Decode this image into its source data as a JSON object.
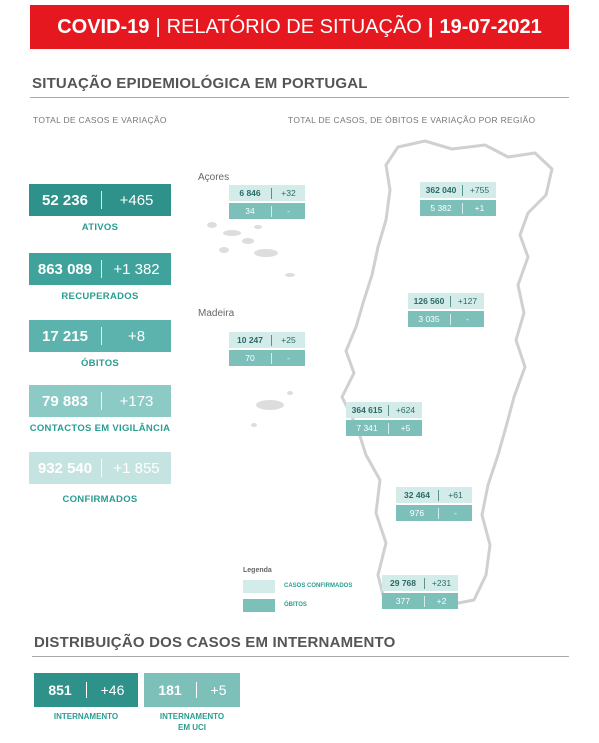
{
  "banner": {
    "left": "COVID-19",
    "middle": "RELATÓRIO DE SITUAÇÃO",
    "date": "19-07-2021",
    "sep": "|",
    "color": "#e4181e"
  },
  "section1": {
    "title": "SITUAÇÃO EPIDEMIOLÓGICA EM PORTUGAL",
    "sub_left": "TOTAL DE CASOS E VARIAÇÃO",
    "sub_right": "TOTAL DE CASOS, DE ÓBITOS E VARIAÇÃO POR REGIÃO"
  },
  "stats": [
    {
      "value": "52 236",
      "delta": "+465",
      "label": "ATIVOS",
      "color": "#2e918a"
    },
    {
      "value": "863 089",
      "delta": "+1 382",
      "label": "RECUPERADOS",
      "color": "#3fa39c"
    },
    {
      "value": "17 215",
      "delta": "+8",
      "label": "ÓBITOS",
      "color": "#5cb3ad"
    },
    {
      "value": "79 883",
      "delta": "+173",
      "label": "CONTACTOS EM VIGILÂNCIA",
      "color": "#8ccac5"
    },
    {
      "value": "932 540",
      "delta": "+1 855",
      "label": "CONFIRMADOS",
      "color": "#c5e4e1"
    }
  ],
  "regions": {
    "acores_name": "Açores",
    "madeira_name": "Madeira",
    "acores": {
      "cases": "6 846",
      "cases_delta": "+32",
      "deaths": "34",
      "deaths_delta": "-"
    },
    "madeira": {
      "cases": "10 247",
      "cases_delta": "+25",
      "deaths": "70",
      "deaths_delta": "-"
    },
    "norte": {
      "cases": "362 040",
      "cases_delta": "+755",
      "deaths": "5 382",
      "deaths_delta": "+1"
    },
    "centro": {
      "cases": "126 560",
      "cases_delta": "+127",
      "deaths": "3 035",
      "deaths_delta": "-"
    },
    "lisboa": {
      "cases": "364 615",
      "cases_delta": "+624",
      "deaths": "7 341",
      "deaths_delta": "+5"
    },
    "alentejo": {
      "cases": "32 464",
      "cases_delta": "+61",
      "deaths": "976",
      "deaths_delta": "-"
    },
    "algarve": {
      "cases": "29 768",
      "cases_delta": "+231",
      "deaths": "377",
      "deaths_delta": "+2"
    }
  },
  "legend": {
    "title": "Legenda",
    "cases": "CASOS CONFIRMADOS",
    "deaths": "ÓBITOS",
    "cases_color": "#d3ebe9",
    "deaths_color": "#7dbfb9"
  },
  "section2": {
    "title": "DISTRIBUIÇÃO DOS CASOS EM INTERNAMENTO"
  },
  "hospital": [
    {
      "value": "851",
      "delta": "+46",
      "label": "INTERNAMENTO",
      "color": "#2e918a"
    },
    {
      "value": "181",
      "delta": "+5",
      "label": "INTERNAMENTO\nEM UCI",
      "color": "#7dbfb9"
    }
  ]
}
